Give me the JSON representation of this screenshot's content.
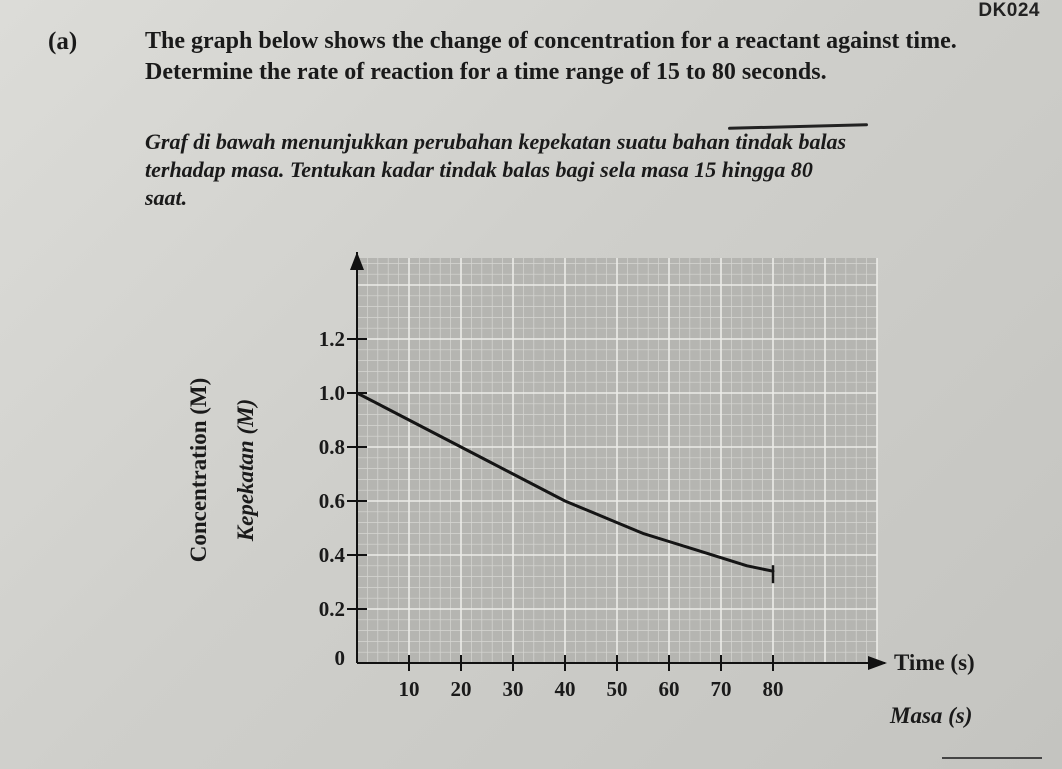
{
  "page_code": "DK024",
  "question": {
    "label": "(a)",
    "english_lines": [
      "The graph below shows the change of concentration for a reactant against time.",
      "Determine the rate of reaction for a time range of 15 to 80 seconds."
    ],
    "malay_lines": [
      "Graf di bawah menunjukkan perubahan kepekatan suatu bahan tindak balas",
      "terhadap masa. Tentukan kadar tindak balas bagi sela masa 15 hingga 80",
      "saat."
    ]
  },
  "chart_data": {
    "type": "line",
    "xlabel": "Time (s)",
    "xlabel_alt": "Masa (s)",
    "ylabel": "Concentration (M)",
    "ylabel_alt": "Kepekatan (M)",
    "x_ticks": [
      "10",
      "20",
      "30",
      "40",
      "50",
      "60",
      "70",
      "80"
    ],
    "y_ticks": [
      "0",
      "0.2",
      "0.4",
      "0.6",
      "0.8",
      "1.0",
      "1.2"
    ],
    "xlim": [
      0,
      100
    ],
    "ylim": [
      0,
      1.4
    ],
    "grid": true,
    "series": [
      {
        "x": [
          0,
          5,
          10,
          15,
          20,
          25,
          30,
          35,
          40,
          45,
          50,
          55,
          60,
          65,
          70,
          75,
          80
        ],
        "y": [
          1.0,
          0.95,
          0.9,
          0.85,
          0.8,
          0.75,
          0.7,
          0.65,
          0.6,
          0.56,
          0.52,
          0.48,
          0.45,
          0.42,
          0.39,
          0.36,
          0.34
        ]
      }
    ]
  }
}
